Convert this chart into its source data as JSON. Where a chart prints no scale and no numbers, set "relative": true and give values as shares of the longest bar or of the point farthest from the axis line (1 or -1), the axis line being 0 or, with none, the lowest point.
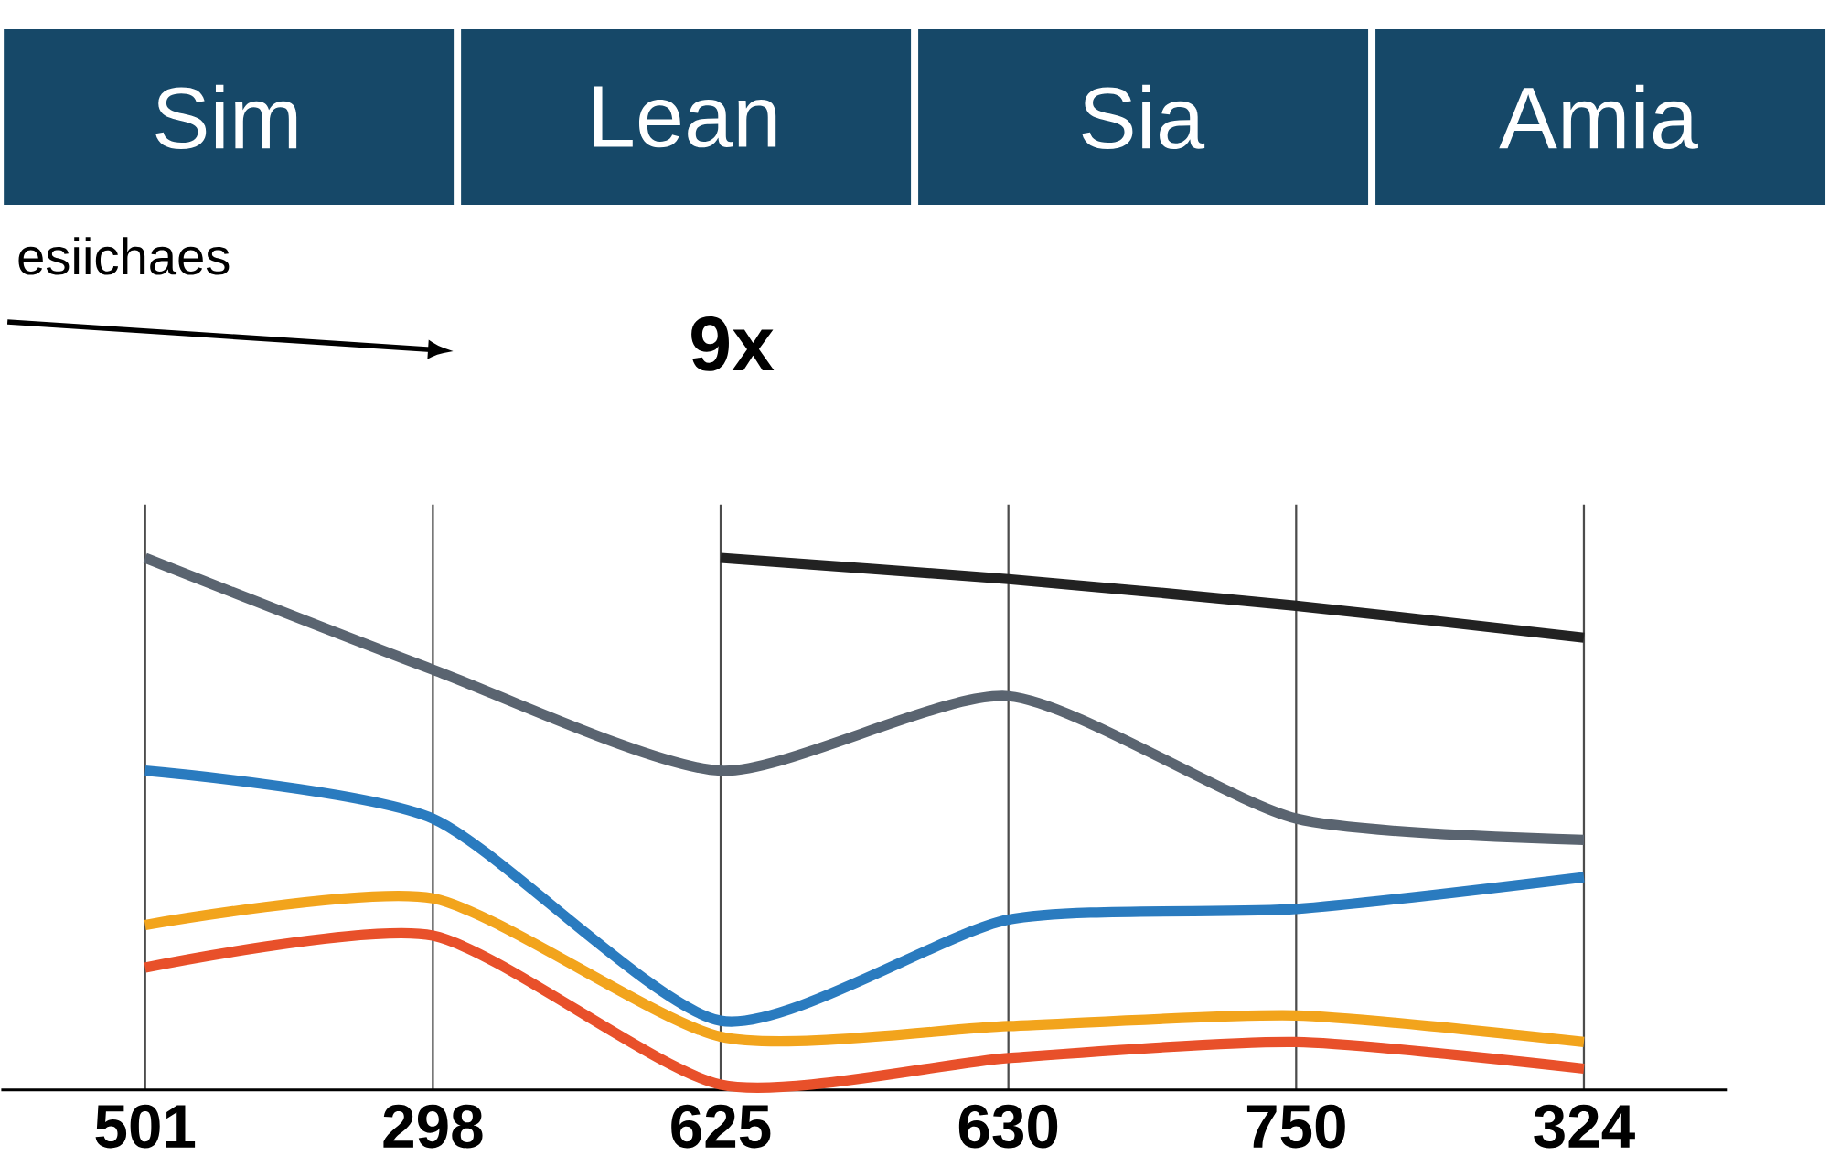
{
  "chart_data": {
    "type": "line",
    "relative": true,
    "grid": "x",
    "marker": "none",
    "line_style": "solid",
    "categories": [
      "501",
      "298",
      "625",
      "630",
      "750",
      "324"
    ],
    "annotations": [
      "Sim",
      "Lean",
      "Sia",
      "Amia",
      "esiichaes",
      "9x"
    ],
    "series": [
      {
        "color": "#5a6470",
        "values": [
          1.0,
          0.79,
          0.6,
          0.74,
          0.51,
          0.47
        ]
      },
      {
        "color": "#222222",
        "values": [
          null,
          null,
          1.0,
          0.96,
          0.91,
          0.85
        ]
      },
      {
        "color": "#2a7bbf",
        "values": [
          0.6,
          0.51,
          0.13,
          0.32,
          0.34,
          0.4
        ]
      },
      {
        "color": "#f2a41c",
        "values": [
          0.31,
          0.36,
          0.1,
          0.12,
          0.14,
          0.09
        ]
      },
      {
        "color": "#e8502a",
        "values": [
          0.23,
          0.29,
          0.01,
          0.06,
          0.09,
          0.04
        ]
      }
    ]
  }
}
